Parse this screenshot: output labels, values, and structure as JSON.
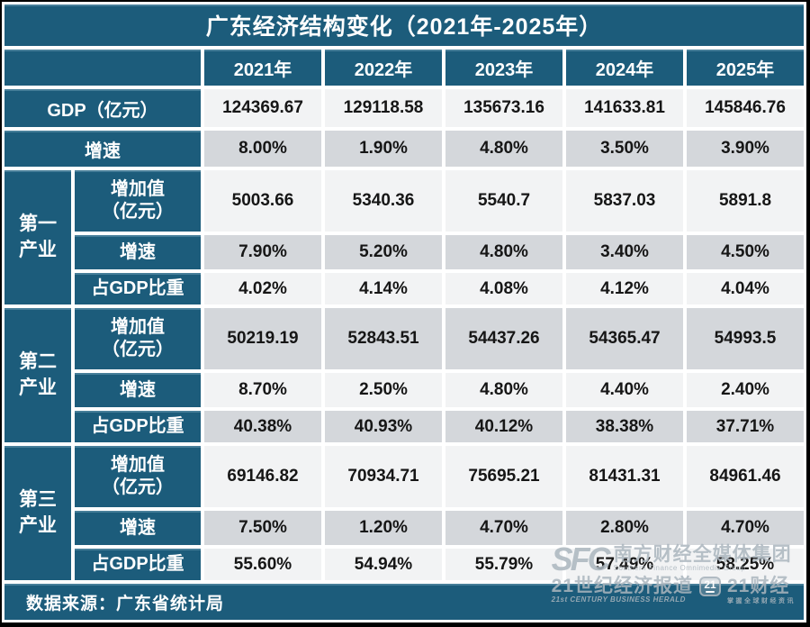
{
  "chart_data": {
    "type": "table",
    "title": "广东经济结构变化（2021年-2025年）",
    "columns": [
      "2021年",
      "2022年",
      "2023年",
      "2024年",
      "2025年"
    ],
    "row_groups": [
      "第一产业",
      "第二产业",
      "第三产业"
    ],
    "rows": [
      {
        "label": "GDP（亿元）",
        "values": [
          "124369.67",
          "129118.58",
          "135673.16",
          "141633.81",
          "145846.76"
        ]
      },
      {
        "label": "增速",
        "values": [
          "8.00%",
          "1.90%",
          "4.80%",
          "3.50%",
          "3.90%"
        ]
      },
      {
        "group": "第一产业",
        "label": "增加值",
        "label2": "（亿元）",
        "values": [
          "5003.66",
          "5340.36",
          "5540.7",
          "5837.03",
          "5891.8"
        ]
      },
      {
        "group": "第一产业",
        "label": "增速",
        "values": [
          "7.90%",
          "5.20%",
          "4.80%",
          "3.40%",
          "4.50%"
        ]
      },
      {
        "group": "第一产业",
        "label": "占GDP比重",
        "values": [
          "4.02%",
          "4.14%",
          "4.08%",
          "4.12%",
          "4.04%"
        ]
      },
      {
        "group": "第二产业",
        "label": "增加值",
        "label2": "（亿元）",
        "values": [
          "50219.19",
          "52843.51",
          "54437.26",
          "54365.47",
          "54993.5"
        ]
      },
      {
        "group": "第二产业",
        "label": "增速",
        "values": [
          "8.70%",
          "2.50%",
          "4.80%",
          "4.40%",
          "2.40%"
        ]
      },
      {
        "group": "第二产业",
        "label": "占GDP比重",
        "values": [
          "40.38%",
          "40.93%",
          "40.12%",
          "38.38%",
          "37.71%"
        ]
      },
      {
        "group": "第三产业",
        "label": "增加值",
        "label2": "（亿元）",
        "values": [
          "69146.82",
          "70934.71",
          "75695.21",
          "81431.31",
          "84961.46"
        ]
      },
      {
        "group": "第三产业",
        "label": "增速",
        "values": [
          "7.50%",
          "1.20%",
          "4.70%",
          "2.80%",
          "4.70%"
        ]
      },
      {
        "group": "第三产业",
        "label": "占GDP比重",
        "values": [
          "55.60%",
          "54.94%",
          "55.79%",
          "57.49%",
          "58.25%"
        ]
      }
    ],
    "source": "数据来源：广东省统计局"
  },
  "watermark": {
    "sfc_logo": "SFC",
    "group_cn": "南方财经全媒体集团",
    "group_en": "Southern Finance Omnimedia Group",
    "herald_cn": "21世纪经济报道",
    "herald_en": "21st CENTURY BUSINESS HERALD",
    "logo_21": "21",
    "brand_21": "21财经",
    "slogan_21": "掌握全球财经资讯"
  },
  "colors": {
    "teal": "#1c5c7b",
    "row_light": "#f2f3f4",
    "row_gray": "#d4d7db",
    "text_dark": "#161616",
    "text_on_teal": "#ffffff"
  }
}
